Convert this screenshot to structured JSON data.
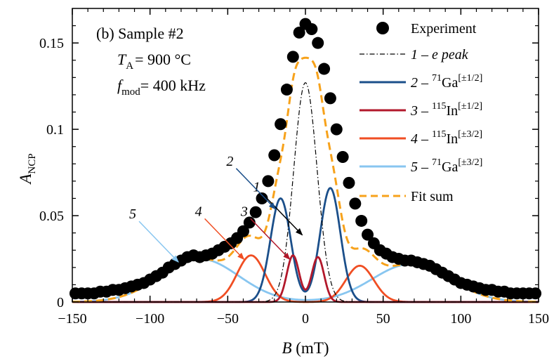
{
  "chart_data": {
    "type": "line",
    "title": "",
    "xlabel": {
      "var": "B",
      "unit": " (mT)"
    },
    "ylabel": {
      "main": "A",
      "sub": "NCP"
    },
    "xlim": [
      -150,
      150
    ],
    "ylim": [
      0,
      0.17
    ],
    "xticks": [
      -150,
      -100,
      -50,
      0,
      50,
      100,
      150
    ],
    "xtick_labels": [
      "−150",
      "−100",
      "−50",
      "0",
      "50",
      "100",
      "150"
    ],
    "yticks": [
      0,
      0.05,
      0.1,
      0.15
    ],
    "ytick_labels": [
      "0",
      "0.05",
      "0.1",
      "0.15"
    ],
    "annotation": {
      "line1": "(b) Sample #2",
      "line2_var": "T",
      "line2_sub": "A",
      "line2_val": "= 900 °C",
      "line3_var": "f",
      "line3_sub": "mod",
      "line3_val": "= 400 kHz"
    },
    "legend": [
      {
        "num": "",
        "dash": "",
        "label": "Experiment"
      },
      {
        "num": "1",
        "dash": " – ",
        "label": "e peak"
      },
      {
        "num": "2",
        "dash": " – ",
        "iso": "71",
        "el": "Ga",
        "state": "[±1/2]"
      },
      {
        "num": "3",
        "dash": " – ",
        "iso": "115",
        "el": "In",
        "state": "[±1/2]"
      },
      {
        "num": "4",
        "dash": " – ",
        "iso": "115",
        "el": "In",
        "state": "[±3/2]"
      },
      {
        "num": "5",
        "dash": " – ",
        "iso": "71",
        "el": "Ga",
        "state": "[±3/2]"
      },
      {
        "num": "",
        "dash": "",
        "label": "Fit sum"
      }
    ],
    "colors": {
      "experiment": "#000000",
      "e_peak": "#000000",
      "ga_half": "#1b4f8a",
      "in_half": "#b2182b",
      "in_three_half": "#f04e23",
      "ga_three_half": "#88c6f0",
      "fit_sum": "#f7a21b"
    },
    "series": [
      {
        "name": "1 – e peak",
        "shape": "gaussian",
        "peaks": [
          {
            "center": 0,
            "amplitude": 0.127,
            "sigma": 7.5
          }
        ]
      },
      {
        "name": "2 – 71Ga[±1/2]",
        "shape": "gaussian",
        "peaks": [
          {
            "center": -16,
            "amplitude": 0.06,
            "sigma": 6.5
          },
          {
            "center": 16,
            "amplitude": 0.066,
            "sigma": 6.5
          }
        ]
      },
      {
        "name": "3 – 115In[±1/2]",
        "shape": "gaussian",
        "peaks": [
          {
            "center": -8,
            "amplitude": 0.027,
            "sigma": 4.0
          },
          {
            "center": 8,
            "amplitude": 0.026,
            "sigma": 4.0
          }
        ]
      },
      {
        "name": "4 – 115In[±3/2]",
        "shape": "gaussian",
        "peaks": [
          {
            "center": -35,
            "amplitude": 0.027,
            "sigma": 9.0
          },
          {
            "center": 35,
            "amplitude": 0.021,
            "sigma": 9.0
          }
        ]
      },
      {
        "name": "5 – 71Ga[±3/2]",
        "shape": "gaussian",
        "peaks": [
          {
            "center": -68,
            "amplitude": 0.025,
            "sigma": 25
          },
          {
            "center": 68,
            "amplitude": 0.022,
            "sigma": 25
          }
        ]
      }
    ],
    "experiment": {
      "x": [
        -148,
        -144,
        -140,
        -136,
        -132,
        -128,
        -124,
        -120,
        -116,
        -112,
        -108,
        -104,
        -100,
        -96,
        -92,
        -88,
        -84,
        -80,
        -76,
        -72,
        -68,
        -64,
        -60,
        -56,
        -52,
        -48,
        -44,
        -40,
        -36,
        -32,
        -28,
        -24,
        -20,
        -16,
        -12,
        -8,
        -4,
        0,
        4,
        8,
        12,
        16,
        20,
        24,
        28,
        32,
        36,
        40,
        44,
        48,
        52,
        56,
        60,
        64,
        68,
        72,
        76,
        80,
        84,
        88,
        92,
        96,
        100,
        104,
        108,
        112,
        116,
        120,
        124,
        128,
        132,
        136,
        140,
        144,
        148
      ],
      "y": [
        0.005,
        0.005,
        0.005,
        0.005,
        0.006,
        0.006,
        0.007,
        0.007,
        0.008,
        0.009,
        0.01,
        0.011,
        0.013,
        0.015,
        0.017,
        0.02,
        0.022,
        0.024,
        0.026,
        0.027,
        0.026,
        0.027,
        0.028,
        0.03,
        0.032,
        0.034,
        0.037,
        0.041,
        0.046,
        0.052,
        0.06,
        0.07,
        0.085,
        0.103,
        0.123,
        0.142,
        0.156,
        0.161,
        0.158,
        0.15,
        0.135,
        0.118,
        0.1,
        0.084,
        0.069,
        0.057,
        0.047,
        0.039,
        0.034,
        0.03,
        0.028,
        0.026,
        0.025,
        0.024,
        0.024,
        0.023,
        0.022,
        0.021,
        0.019,
        0.017,
        0.015,
        0.013,
        0.011,
        0.01,
        0.009,
        0.008,
        0.007,
        0.007,
        0.006,
        0.006,
        0.005,
        0.005,
        0.005,
        0.005,
        0.005
      ]
    },
    "callouts": [
      {
        "label": "1",
        "series": 0,
        "peak": 0
      },
      {
        "label": "2",
        "series": 1,
        "peak": 0
      },
      {
        "label": "3",
        "series": 2,
        "peak": 0
      },
      {
        "label": "4",
        "series": 3,
        "peak": 0
      },
      {
        "label": "5",
        "series": 4,
        "peak": 0
      }
    ]
  }
}
